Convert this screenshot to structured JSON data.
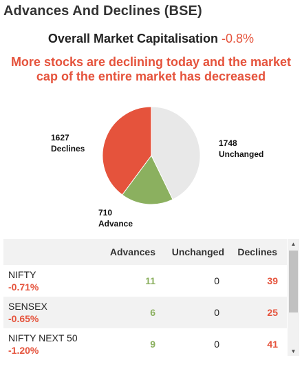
{
  "header": {
    "title": "Advances And Declines (BSE)"
  },
  "market_cap": {
    "label": "Overall Market Capitalisation",
    "value": "-0.8%"
  },
  "message": "More stocks are declining today and the market cap of the entire market has decreased",
  "colors": {
    "declines": "#e5533c",
    "advance": "#8bb05f",
    "unchanged": "#e8e8e8"
  },
  "chart_data": {
    "type": "pie",
    "slices": [
      {
        "name": "Declines",
        "value": 1627,
        "color": "#e5533c"
      },
      {
        "name": "Advance",
        "value": 710,
        "color": "#8bb05f"
      },
      {
        "name": "Unchanged",
        "value": 1748,
        "color": "#e8e8e8"
      }
    ],
    "labels": {
      "declines": {
        "count": "1627",
        "name": "Declines"
      },
      "advance": {
        "count": "710",
        "name": "Advance"
      },
      "unchanged": {
        "count": "1748",
        "name": "Unchanged"
      }
    }
  },
  "table": {
    "headers": {
      "name": "",
      "advances": "Advances",
      "unchanged": "Unchanged",
      "declines": "Declines"
    },
    "rows": [
      {
        "name": "NIFTY",
        "change": "-0.71%",
        "advances": "11",
        "unchanged": "0",
        "declines": "39"
      },
      {
        "name": "SENSEX",
        "change": "-0.65%",
        "advances": "6",
        "unchanged": "0",
        "declines": "25"
      },
      {
        "name": "NIFTY NEXT 50",
        "change": "-1.20%",
        "advances": "9",
        "unchanged": "0",
        "declines": "41"
      }
    ]
  }
}
